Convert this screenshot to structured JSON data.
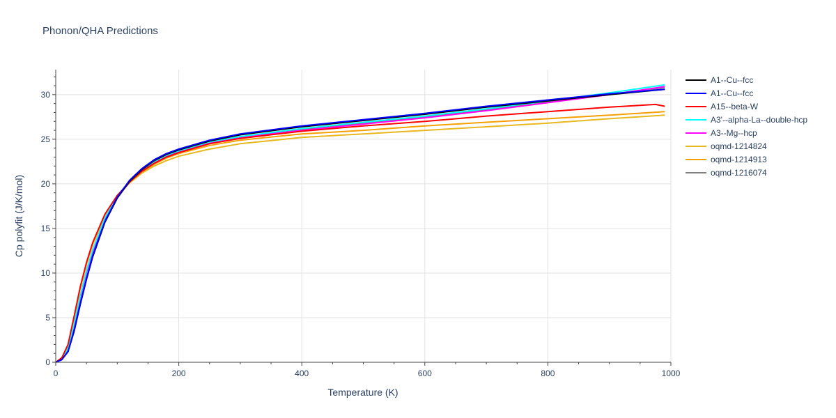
{
  "chart_data": {
    "type": "line",
    "title": "Phonon/QHA Predictions",
    "xlabel": "Temperature (K)",
    "ylabel": "Cp polyfit (J/K/mol)",
    "xlim": [
      0,
      1000
    ],
    "ylim": [
      0,
      32.8
    ],
    "xticks": [
      0,
      200,
      400,
      600,
      800,
      1000
    ],
    "yticks": [
      0,
      5,
      10,
      15,
      20,
      25,
      30
    ],
    "grid": true,
    "legend_position": "top-right, outside plot",
    "series": [
      {
        "name": "A1--Cu--fcc",
        "color": "#000000",
        "x": [
          0,
          10,
          20,
          30,
          40,
          50,
          60,
          80,
          100,
          120,
          140,
          160,
          180,
          200,
          250,
          300,
          400,
          500,
          600,
          700,
          800,
          900,
          990
        ],
        "y": [
          0,
          0.3,
          1.2,
          3.5,
          6.5,
          9.3,
          11.8,
          15.7,
          18.4,
          20.3,
          21.6,
          22.6,
          23.3,
          23.8,
          24.8,
          25.5,
          26.4,
          27.1,
          27.8,
          28.6,
          29.3,
          30.0,
          30.6
        ]
      },
      {
        "name": "A1--Cu--fcc",
        "color": "#0000ff",
        "x": [
          0,
          10,
          20,
          30,
          40,
          50,
          60,
          80,
          100,
          120,
          140,
          160,
          180,
          200,
          250,
          300,
          400,
          500,
          600,
          700,
          800,
          900,
          990
        ],
        "y": [
          0,
          0.3,
          1.2,
          3.6,
          6.6,
          9.4,
          11.9,
          15.8,
          18.5,
          20.4,
          21.7,
          22.7,
          23.4,
          23.9,
          24.9,
          25.6,
          26.5,
          27.2,
          27.9,
          28.7,
          29.4,
          30.1,
          30.6
        ]
      },
      {
        "name": "A15--beta-W",
        "color": "#ff0000",
        "x": [
          0,
          10,
          20,
          30,
          40,
          50,
          60,
          80,
          100,
          120,
          140,
          160,
          180,
          200,
          250,
          300,
          400,
          500,
          600,
          700,
          800,
          900,
          975,
          990
        ],
        "y": [
          0,
          0.5,
          2.0,
          5.2,
          8.5,
          11.2,
          13.4,
          16.6,
          18.7,
          20.2,
          21.4,
          22.3,
          23.0,
          23.5,
          24.5,
          25.1,
          25.9,
          26.5,
          27.0,
          27.6,
          28.1,
          28.6,
          28.9,
          28.7
        ]
      },
      {
        "name": "A3'--alpha-La--double-hcp",
        "color": "#00ffff",
        "x": [
          0,
          10,
          20,
          30,
          40,
          50,
          60,
          80,
          100,
          120,
          140,
          160,
          180,
          200,
          250,
          300,
          400,
          500,
          600,
          700,
          800,
          900,
          990
        ],
        "y": [
          0,
          0.4,
          1.6,
          4.4,
          7.5,
          10.3,
          12.6,
          16.2,
          18.6,
          20.3,
          21.6,
          22.5,
          23.2,
          23.7,
          24.7,
          25.3,
          26.2,
          26.9,
          27.6,
          28.4,
          29.3,
          30.2,
          31.1
        ]
      },
      {
        "name": "A3--Mg--hcp",
        "color": "#ff00ff",
        "x": [
          0,
          10,
          20,
          30,
          40,
          50,
          60,
          80,
          100,
          120,
          140,
          160,
          180,
          200,
          250,
          300,
          400,
          500,
          600,
          700,
          800,
          900,
          990
        ],
        "y": [
          0,
          0.4,
          1.5,
          4.2,
          7.3,
          10.1,
          12.4,
          16.0,
          18.5,
          20.2,
          21.5,
          22.4,
          23.1,
          23.6,
          24.6,
          25.2,
          26.0,
          26.7,
          27.4,
          28.2,
          29.1,
          30.0,
          30.9
        ]
      },
      {
        "name": "oqmd-1214824",
        "color": "#e8b820",
        "x": [
          0,
          10,
          20,
          30,
          40,
          50,
          60,
          80,
          100,
          120,
          140,
          160,
          180,
          200,
          250,
          300,
          400,
          500,
          600,
          700,
          800,
          900,
          990
        ],
        "y": [
          0,
          0.5,
          1.9,
          5.0,
          8.3,
          11.0,
          13.2,
          16.4,
          18.6,
          20.1,
          21.2,
          22.0,
          22.6,
          23.1,
          23.9,
          24.5,
          25.2,
          25.6,
          26.0,
          26.4,
          26.8,
          27.3,
          27.7
        ]
      },
      {
        "name": "oqmd-1214913",
        "color": "#f5a000",
        "x": [
          0,
          10,
          20,
          30,
          40,
          50,
          60,
          80,
          100,
          120,
          140,
          160,
          180,
          200,
          250,
          300,
          400,
          500,
          600,
          700,
          800,
          900,
          990
        ],
        "y": [
          0,
          0.5,
          1.9,
          5.0,
          8.3,
          11.0,
          13.2,
          16.4,
          18.6,
          20.2,
          21.3,
          22.2,
          22.9,
          23.4,
          24.3,
          24.9,
          25.6,
          26.0,
          26.5,
          26.9,
          27.3,
          27.7,
          28.1
        ]
      },
      {
        "name": "oqmd-1216074",
        "color": "#808080",
        "x": [
          0,
          10,
          20,
          30,
          40,
          50,
          60,
          80,
          100,
          120,
          140,
          160,
          180,
          200,
          250,
          300,
          400,
          500,
          600,
          700,
          800,
          900,
          990
        ],
        "y": [
          0,
          0.4,
          1.5,
          4.2,
          7.3,
          10.1,
          12.4,
          16.0,
          18.5,
          20.2,
          21.5,
          22.4,
          23.1,
          23.6,
          24.6,
          25.2,
          26.1,
          26.8,
          27.5,
          28.3,
          29.2,
          30.0,
          30.8
        ]
      }
    ]
  }
}
